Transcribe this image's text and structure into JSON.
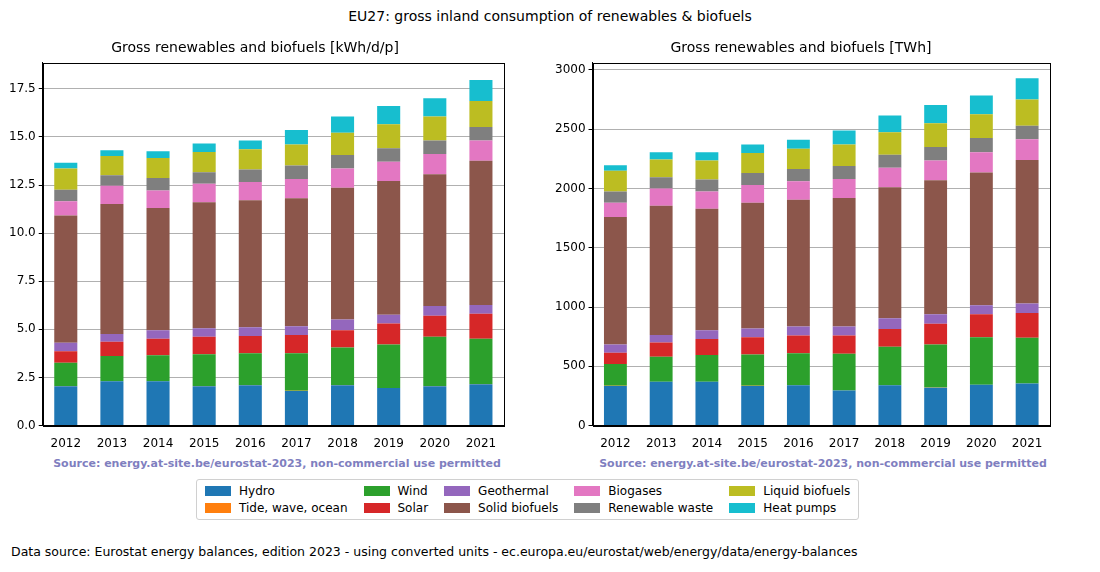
{
  "title": "EU27: gross inland consumption of renewables & biofuels",
  "annotations": [
    "Data source: Eurostat energy balances, edition 2023 - using converted units - ec.europa.eu/eurostat/web/energy/data/energy-balances"
  ],
  "chart_data": [
    {
      "type": "bar",
      "title": "Gross renewables and biofuels [kWh/d/p]",
      "annotations": [
        "Source: energy.at-site.be/eurostat-2023, non-commercial use permitted"
      ],
      "stacked": true,
      "grid": true,
      "legend": "bottom",
      "categories": [
        "2012",
        "2013",
        "2014",
        "2015",
        "2016",
        "2017",
        "2018",
        "2019",
        "2020",
        "2021"
      ],
      "ylim": [
        0,
        18.85
      ],
      "yticks": [
        {
          "value": 0,
          "label": "0.0"
        },
        2.5,
        {
          "value": 5,
          "label": "5.0"
        },
        7.5,
        {
          "value": 10,
          "label": "10.0"
        },
        12.5,
        {
          "value": 15,
          "label": "15.0"
        },
        17.5
      ],
      "series": [
        {
          "name": "Hydro",
          "color": "#1f77b4",
          "values": [
            2.05,
            2.3,
            2.3,
            2.05,
            2.1,
            1.8,
            2.1,
            1.95,
            2.05,
            2.15
          ]
        },
        {
          "name": "Tide, wave, ocean",
          "color": "#ff7f0e",
          "values": [
            0.01,
            0.01,
            0.01,
            0.01,
            0.01,
            0.01,
            0.01,
            0.01,
            0.01,
            0.01
          ]
        },
        {
          "name": "Wind",
          "color": "#2ca02c",
          "values": [
            1.2,
            1.3,
            1.35,
            1.65,
            1.65,
            1.95,
            1.95,
            2.25,
            2.55,
            2.35
          ]
        },
        {
          "name": "Solar",
          "color": "#d62728",
          "values": [
            0.6,
            0.75,
            0.85,
            0.9,
            0.9,
            0.95,
            0.9,
            1.1,
            1.1,
            1.3
          ]
        },
        {
          "name": "Geothermal",
          "color": "#9467bd",
          "values": [
            0.45,
            0.4,
            0.45,
            0.45,
            0.45,
            0.45,
            0.55,
            0.45,
            0.5,
            0.45
          ]
        },
        {
          "name": "Solid biofuels",
          "color": "#8c564b",
          "values": [
            6.6,
            6.75,
            6.35,
            6.55,
            6.6,
            6.65,
            6.85,
            6.95,
            6.85,
            7.5
          ]
        },
        {
          "name": "Biogases",
          "color": "#e377c2",
          "values": [
            0.75,
            0.95,
            0.9,
            0.95,
            0.95,
            1.0,
            1.0,
            1.0,
            1.05,
            1.05
          ]
        },
        {
          "name": "Renewable waste",
          "color": "#7f7f7f",
          "values": [
            0.6,
            0.55,
            0.65,
            0.6,
            0.65,
            0.7,
            0.7,
            0.7,
            0.7,
            0.7
          ]
        },
        {
          "name": "Liquid biofuels",
          "color": "#bcbd22",
          "values": [
            1.1,
            1.0,
            1.05,
            1.05,
            1.05,
            1.1,
            1.15,
            1.25,
            1.25,
            1.35
          ]
        },
        {
          "name": "Heat pumps",
          "color": "#17becf",
          "values": [
            0.3,
            0.3,
            0.35,
            0.45,
            0.45,
            0.75,
            0.85,
            0.95,
            0.95,
            1.1
          ]
        }
      ]
    },
    {
      "type": "bar",
      "title": "Gross renewables and biofuels [TWh]",
      "annotations": [
        "Source: energy.at-site.be/eurostat-2023, non-commercial use permitted"
      ],
      "stacked": true,
      "grid": true,
      "legend": "bottom",
      "categories": [
        "2012",
        "2013",
        "2014",
        "2015",
        "2016",
        "2017",
        "2018",
        "2019",
        "2020",
        "2021"
      ],
      "ylim": [
        0,
        3060
      ],
      "yticks": [
        0,
        500,
        1000,
        1500,
        2000,
        2500,
        3000
      ],
      "series": [
        {
          "name": "Hydro",
          "color": "#1f77b4",
          "values": [
            335,
            370,
            370,
            335,
            340,
            295,
            340,
            320,
            345,
            355
          ]
        },
        {
          "name": "Tide, wave, ocean",
          "color": "#ff7f0e",
          "values": [
            0.5,
            0.5,
            0.5,
            0.5,
            0.5,
            0.5,
            0.5,
            0.5,
            0.5,
            0.5
          ]
        },
        {
          "name": "Wind",
          "color": "#2ca02c",
          "values": [
            184.5,
            209.5,
            224.5,
            264.5,
            269.5,
            309.5,
            324.5,
            364.5,
            399.5,
            384.5
          ]
        },
        {
          "name": "Solar",
          "color": "#d62728",
          "values": [
            95,
            120,
            135,
            145,
            150,
            155,
            150,
            175,
            195,
            210
          ]
        },
        {
          "name": "Geothermal",
          "color": "#9467bd",
          "values": [
            70,
            65,
            75,
            75,
            75,
            75,
            90,
            80,
            75,
            80
          ]
        },
        {
          "name": "Solid biofuels",
          "color": "#8c564b",
          "values": [
            1075,
            1090,
            1025,
            1060,
            1070,
            1085,
            1105,
            1130,
            1120,
            1210
          ]
        },
        {
          "name": "Biogases",
          "color": "#e377c2",
          "values": [
            120,
            145,
            145,
            150,
            155,
            160,
            165,
            165,
            170,
            175
          ]
        },
        {
          "name": "Renewable waste",
          "color": "#7f7f7f",
          "values": [
            95,
            95,
            100,
            100,
            105,
            110,
            110,
            115,
            120,
            115
          ]
        },
        {
          "name": "Liquid biofuels",
          "color": "#bcbd22",
          "values": [
            175,
            150,
            160,
            170,
            170,
            180,
            190,
            200,
            200,
            220
          ]
        },
        {
          "name": "Heat pumps",
          "color": "#17becf",
          "values": [
            45,
            60,
            70,
            70,
            75,
            120,
            140,
            155,
            160,
            180
          ]
        }
      ]
    }
  ]
}
